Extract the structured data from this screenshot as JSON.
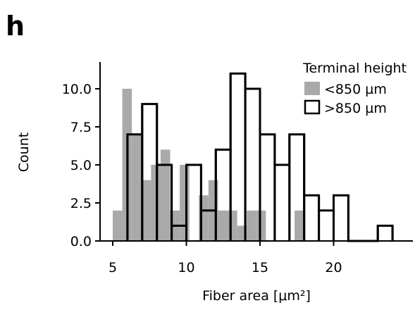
{
  "panel_label": "h",
  "chart_data": {
    "type": "bar",
    "subtype": "overlaid histogram",
    "title": "",
    "xlabel": "Fiber area [μm²]",
    "ylabel": "Count",
    "xlim": [
      3.5,
      25.5
    ],
    "ylim": [
      0,
      11.5
    ],
    "xticks": [
      5,
      10,
      15,
      20
    ],
    "yticks": [
      0.0,
      2.5,
      5.0,
      7.5,
      10.0
    ],
    "xtick_labels": [
      "5",
      "10",
      "15",
      "20"
    ],
    "ytick_labels": [
      "0.0",
      "2.5",
      "5.0",
      "7.5",
      "10.0"
    ],
    "grid": false,
    "legend": {
      "title": "Terminal height",
      "placement": "top-right"
    },
    "colors": {
      "low_fill": "#a9a9a9",
      "high_edge": "#000000",
      "axis": "#000000"
    },
    "series": [
      {
        "name": "<850 µm",
        "style": "filled",
        "bins": [
          {
            "x0": 5.0,
            "x1": 5.65,
            "value": 2
          },
          {
            "x0": 5.65,
            "x1": 6.3,
            "value": 10
          },
          {
            "x0": 6.3,
            "x1": 6.95,
            "value": 7
          },
          {
            "x0": 6.95,
            "x1": 7.6,
            "value": 4
          },
          {
            "x0": 7.6,
            "x1": 8.25,
            "value": 5
          },
          {
            "x0": 8.25,
            "x1": 8.9,
            "value": 6
          },
          {
            "x0": 8.9,
            "x1": 9.55,
            "value": 2
          },
          {
            "x0": 9.55,
            "x1": 10.2,
            "value": 5
          },
          {
            "x0": 10.2,
            "x1": 10.85,
            "value": 0
          },
          {
            "x0": 10.85,
            "x1": 11.5,
            "value": 3
          },
          {
            "x0": 11.5,
            "x1": 12.15,
            "value": 4
          },
          {
            "x0": 12.15,
            "x1": 12.8,
            "value": 2
          },
          {
            "x0": 12.8,
            "x1": 13.45,
            "value": 2
          },
          {
            "x0": 13.45,
            "x1": 14.1,
            "value": 1
          },
          {
            "x0": 14.1,
            "x1": 14.75,
            "value": 2
          },
          {
            "x0": 14.75,
            "x1": 15.4,
            "value": 2
          },
          {
            "x0": 15.4,
            "x1": 16.05,
            "value": 0
          },
          {
            "x0": 16.05,
            "x1": 16.7,
            "value": 0
          },
          {
            "x0": 16.7,
            "x1": 17.35,
            "value": 0
          },
          {
            "x0": 17.35,
            "x1": 18.0,
            "value": 2
          }
        ]
      },
      {
        "name": ">850 µm",
        "style": "outline",
        "bins": [
          {
            "x0": 6.0,
            "x1": 7.0,
            "value": 7
          },
          {
            "x0": 7.0,
            "x1": 8.0,
            "value": 9
          },
          {
            "x0": 8.0,
            "x1": 9.0,
            "value": 5
          },
          {
            "x0": 9.0,
            "x1": 10.0,
            "value": 1
          },
          {
            "x0": 10.0,
            "x1": 11.0,
            "value": 5
          },
          {
            "x0": 11.0,
            "x1": 12.0,
            "value": 2
          },
          {
            "x0": 12.0,
            "x1": 13.0,
            "value": 6
          },
          {
            "x0": 13.0,
            "x1": 14.0,
            "value": 11
          },
          {
            "x0": 14.0,
            "x1": 15.0,
            "value": 10
          },
          {
            "x0": 15.0,
            "x1": 16.0,
            "value": 7
          },
          {
            "x0": 16.0,
            "x1": 17.0,
            "value": 5
          },
          {
            "x0": 17.0,
            "x1": 18.0,
            "value": 7
          },
          {
            "x0": 18.0,
            "x1": 19.0,
            "value": 3
          },
          {
            "x0": 19.0,
            "x1": 20.0,
            "value": 2
          },
          {
            "x0": 20.0,
            "x1": 21.0,
            "value": 3
          },
          {
            "x0": 21.0,
            "x1": 22.0,
            "value": 0
          },
          {
            "x0": 22.0,
            "x1": 23.0,
            "value": 0
          },
          {
            "x0": 23.0,
            "x1": 24.0,
            "value": 1
          }
        ]
      }
    ]
  }
}
